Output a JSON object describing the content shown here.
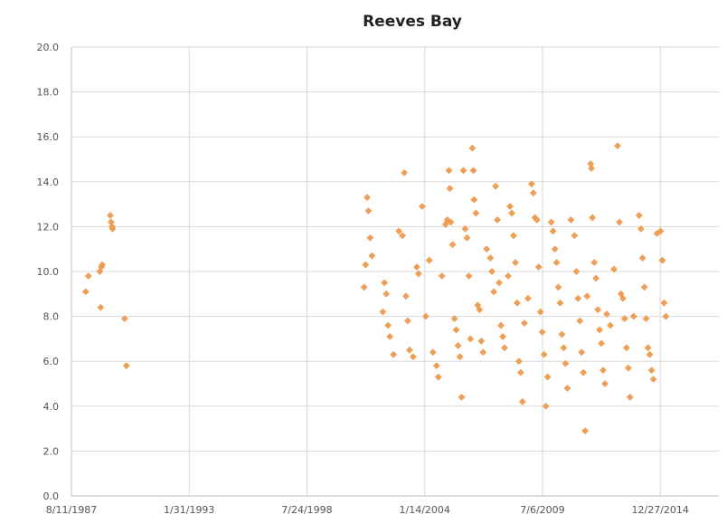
{
  "chart_data": {
    "type": "scatter",
    "title": "Reeves Bay",
    "xlabel": "",
    "ylabel": "",
    "x_ticks": [
      "8/11/1987",
      "1/31/1993",
      "7/24/1998",
      "1/14/2004",
      "7/6/2009",
      "12/27/2014"
    ],
    "y_ticks": [
      "0.0",
      "2.0",
      "4.0",
      "6.0",
      "8.0",
      "10.0",
      "12.0",
      "14.0",
      "16.0",
      "18.0",
      "20.0"
    ],
    "xlim": [
      "1987-08-11",
      "2017-09-17"
    ],
    "ylim": [
      0,
      20
    ],
    "grid": "vertical and horizontal",
    "legend": "none",
    "marker": "diamond",
    "color": "#f0a056",
    "points": [
      [
        "1988-04-10",
        9.1
      ],
      [
        "1988-05-25",
        9.8
      ],
      [
        "1988-12-05",
        10.0
      ],
      [
        "1989-01-01",
        10.2
      ],
      [
        "1988-12-20",
        8.4
      ],
      [
        "1989-01-15",
        10.3
      ],
      [
        "1989-06-01",
        12.5
      ],
      [
        "1989-06-15",
        12.2
      ],
      [
        "1989-07-01",
        12.0
      ],
      [
        "1989-07-10",
        11.9
      ],
      [
        "1990-02-01",
        7.9
      ],
      [
        "1990-03-01",
        5.8
      ],
      [
        "2001-05-10",
        13.3
      ],
      [
        "2001-06-01",
        12.7
      ],
      [
        "2001-07-01",
        11.5
      ],
      [
        "2001-08-01",
        10.7
      ],
      [
        "2001-04-15",
        10.3
      ],
      [
        "2001-03-20",
        9.3
      ],
      [
        "2002-03-01",
        9.5
      ],
      [
        "2002-04-01",
        9.0
      ],
      [
        "2002-02-01",
        8.2
      ],
      [
        "2002-05-01",
        7.6
      ],
      [
        "2002-06-01",
        7.1
      ],
      [
        "2002-08-01",
        6.3
      ],
      [
        "2002-11-01",
        11.8
      ],
      [
        "2003-01-01",
        11.6
      ],
      [
        "2003-02-01",
        14.4
      ],
      [
        "2003-03-01",
        8.9
      ],
      [
        "2003-04-01",
        7.8
      ],
      [
        "2003-05-01",
        6.5
      ],
      [
        "2003-07-01",
        6.2
      ],
      [
        "2003-09-01",
        10.2
      ],
      [
        "2003-10-01",
        9.9
      ],
      [
        "2003-12-01",
        12.9
      ],
      [
        "2004-02-01",
        8.0
      ],
      [
        "2004-04-01",
        10.5
      ],
      [
        "2004-06-01",
        6.4
      ],
      [
        "2004-08-01",
        5.8
      ],
      [
        "2004-09-01",
        5.3
      ],
      [
        "2004-11-01",
        9.8
      ],
      [
        "2005-01-01",
        12.1
      ],
      [
        "2005-02-01",
        12.3
      ],
      [
        "2005-03-01",
        14.5
      ],
      [
        "2005-03-15",
        13.7
      ],
      [
        "2005-04-01",
        12.2
      ],
      [
        "2005-05-01",
        11.2
      ],
      [
        "2005-06-01",
        7.9
      ],
      [
        "2005-07-01",
        7.4
      ],
      [
        "2005-08-01",
        6.7
      ],
      [
        "2005-09-01",
        6.2
      ],
      [
        "2005-10-01",
        4.4
      ],
      [
        "2005-11-01",
        14.5
      ],
      [
        "2005-12-01",
        11.9
      ],
      [
        "2006-01-01",
        11.5
      ],
      [
        "2006-02-01",
        9.8
      ],
      [
        "2006-03-01",
        7.0
      ],
      [
        "2006-04-01",
        15.5
      ],
      [
        "2006-04-20",
        14.5
      ],
      [
        "2006-05-01",
        13.2
      ],
      [
        "2006-06-01",
        12.6
      ],
      [
        "2006-07-01",
        8.5
      ],
      [
        "2006-08-01",
        8.3
      ],
      [
        "2006-09-01",
        6.9
      ],
      [
        "2006-10-01",
        6.4
      ],
      [
        "2006-12-01",
        11.0
      ],
      [
        "2007-02-01",
        10.6
      ],
      [
        "2007-03-01",
        10.0
      ],
      [
        "2007-04-01",
        9.1
      ],
      [
        "2007-05-01",
        13.8
      ],
      [
        "2007-06-01",
        12.3
      ],
      [
        "2007-07-01",
        9.5
      ],
      [
        "2007-08-01",
        7.6
      ],
      [
        "2007-09-01",
        7.1
      ],
      [
        "2007-10-01",
        6.6
      ],
      [
        "2007-12-01",
        9.8
      ],
      [
        "2008-01-01",
        12.9
      ],
      [
        "2008-02-01",
        12.6
      ],
      [
        "2008-03-01",
        11.6
      ],
      [
        "2008-04-01",
        10.4
      ],
      [
        "2008-05-01",
        8.6
      ],
      [
        "2008-06-01",
        6.0
      ],
      [
        "2008-07-01",
        5.5
      ],
      [
        "2008-08-01",
        4.2
      ],
      [
        "2008-09-01",
        7.7
      ],
      [
        "2008-11-01",
        8.8
      ],
      [
        "2009-01-01",
        13.9
      ],
      [
        "2009-02-01",
        13.5
      ],
      [
        "2009-03-01",
        12.4
      ],
      [
        "2009-04-01",
        12.3
      ],
      [
        "2009-05-01",
        10.2
      ],
      [
        "2009-06-01",
        8.2
      ],
      [
        "2009-07-01",
        7.3
      ],
      [
        "2009-08-01",
        6.3
      ],
      [
        "2009-09-01",
        4.0
      ],
      [
        "2009-10-01",
        5.3
      ],
      [
        "2009-12-01",
        12.2
      ],
      [
        "2010-01-01",
        11.8
      ],
      [
        "2010-02-01",
        11.0
      ],
      [
        "2010-03-01",
        10.4
      ],
      [
        "2010-04-01",
        9.3
      ],
      [
        "2010-05-01",
        8.6
      ],
      [
        "2010-06-01",
        7.2
      ],
      [
        "2010-07-01",
        6.6
      ],
      [
        "2010-08-01",
        5.9
      ],
      [
        "2010-09-01",
        4.8
      ],
      [
        "2010-11-01",
        12.3
      ],
      [
        "2011-01-01",
        11.6
      ],
      [
        "2011-02-01",
        10.0
      ],
      [
        "2011-03-01",
        8.8
      ],
      [
        "2011-04-01",
        7.8
      ],
      [
        "2011-05-01",
        6.4
      ],
      [
        "2011-06-01",
        5.5
      ],
      [
        "2011-07-01",
        2.9
      ],
      [
        "2011-08-01",
        8.9
      ],
      [
        "2011-10-01",
        14.8
      ],
      [
        "2011-10-15",
        14.6
      ],
      [
        "2011-11-01",
        12.4
      ],
      [
        "2011-12-01",
        10.4
      ],
      [
        "2012-01-01",
        9.7
      ],
      [
        "2012-02-01",
        8.3
      ],
      [
        "2012-03-01",
        7.4
      ],
      [
        "2012-04-01",
        6.8
      ],
      [
        "2012-05-01",
        5.6
      ],
      [
        "2012-06-01",
        5.0
      ],
      [
        "2012-07-01",
        8.1
      ],
      [
        "2012-09-01",
        7.6
      ],
      [
        "2012-11-01",
        10.1
      ],
      [
        "2013-01-01",
        15.6
      ],
      [
        "2013-02-01",
        12.2
      ],
      [
        "2013-03-01",
        9.0
      ],
      [
        "2013-04-01",
        8.8
      ],
      [
        "2013-05-01",
        7.9
      ],
      [
        "2013-06-01",
        6.6
      ],
      [
        "2013-07-01",
        5.7
      ],
      [
        "2013-08-01",
        4.4
      ],
      [
        "2013-10-01",
        8.0
      ],
      [
        "2014-01-01",
        12.5
      ],
      [
        "2014-02-01",
        11.9
      ],
      [
        "2014-03-01",
        10.6
      ],
      [
        "2014-04-01",
        9.3
      ],
      [
        "2014-05-01",
        7.9
      ],
      [
        "2014-06-01",
        6.6
      ],
      [
        "2014-07-01",
        6.3
      ],
      [
        "2014-08-01",
        5.6
      ],
      [
        "2014-09-01",
        5.2
      ],
      [
        "2014-11-01",
        11.7
      ],
      [
        "2015-01-01",
        11.8
      ],
      [
        "2015-02-01",
        10.5
      ],
      [
        "2015-03-01",
        8.6
      ],
      [
        "2015-04-01",
        8.0
      ]
    ]
  }
}
